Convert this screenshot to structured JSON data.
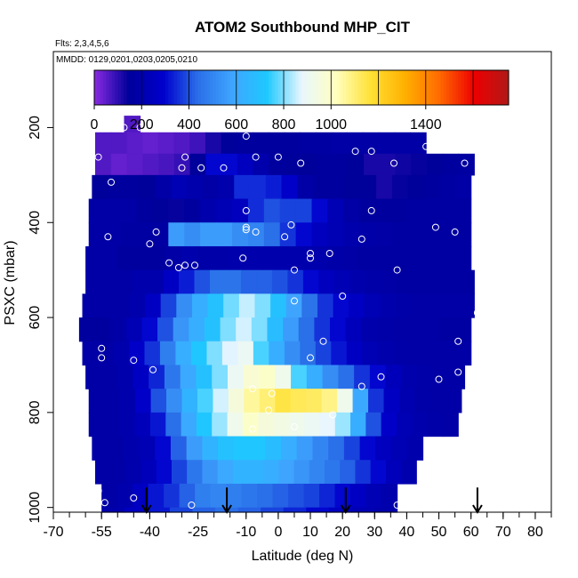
{
  "chart_data": {
    "type": "heatmap",
    "title": "ATOM2 Southbound MHP_CIT",
    "flights_note": "Flts: 2,3,4,5,6",
    "dates_note": "MMDD: 0129,0201,0203,0205,0210",
    "xlabel": "Latitude (deg N)",
    "ylabel": "PSXC (mbar)",
    "xlim": [
      -70,
      85
    ],
    "ylim": [
      1010,
      40
    ],
    "x_ticks": [
      {
        "value": -70,
        "label": "-70"
      },
      {
        "value": -55,
        "label": "-55"
      },
      {
        "value": -40,
        "label": "-40"
      },
      {
        "value": -25,
        "label": "-25"
      },
      {
        "value": -10,
        "label": "-10"
      },
      {
        "value": 0,
        "label": "0"
      },
      {
        "value": 10,
        "label": "10"
      },
      {
        "value": 20,
        "label": "20"
      },
      {
        "value": 30,
        "label": "30"
      },
      {
        "value": 40,
        "label": "40"
      },
      {
        "value": 50,
        "label": "50"
      },
      {
        "value": 60,
        "label": "60"
      },
      {
        "value": 70,
        "label": "70"
      },
      {
        "value": 80,
        "label": "80"
      }
    ],
    "x_minor_ticks": [
      -70,
      -65,
      -60,
      -55,
      -50,
      -45,
      -40,
      -35,
      -30,
      -25,
      -20,
      -15,
      -10,
      -5,
      0,
      5,
      10,
      15,
      20,
      25,
      30,
      35,
      40,
      45,
      50,
      55,
      60,
      65,
      70,
      75,
      80,
      85
    ],
    "y_ticks": [
      {
        "value": 200,
        "label": "200"
      },
      {
        "value": 400,
        "label": "400"
      },
      {
        "value": 600,
        "label": "600"
      },
      {
        "value": 800,
        "label": "800"
      },
      {
        "value": 1000,
        "label": "1000"
      }
    ],
    "colorbar": {
      "min": 0,
      "max": 1750,
      "boundaries": [
        0,
        200,
        400,
        600,
        800,
        1000,
        1200,
        1400,
        1600
      ],
      "labels": [
        {
          "value": 0,
          "label": "0"
        },
        {
          "value": 200,
          "label": "200"
        },
        {
          "value": 400,
          "label": "400"
        },
        {
          "value": 600,
          "label": "600"
        },
        {
          "value": 800,
          "label": "800"
        },
        {
          "value": 1000,
          "label": "1000"
        },
        {
          "value": 1400,
          "label": "1400"
        }
      ],
      "colors": [
        "#8a2be2",
        "#00009a",
        "#0000cd",
        "#2a6fe8",
        "#3fa5ff",
        "#1ec8ff",
        "#e8f6ff",
        "#ffffc0",
        "#ffe135",
        "#ffb000",
        "#ff6a00",
        "#ee0000",
        "#b01818"
      ]
    },
    "rows": [
      {
        "p_top": 175,
        "p_bot": 210,
        "x_start": -48,
        "x_end": -43,
        "values": [
          60,
          60
        ]
      },
      {
        "p_top": 210,
        "p_bot": 255,
        "x_start": -57,
        "x_end": 46,
        "values": [
          60,
          60,
          50,
          40,
          50,
          60,
          80,
          120,
          150,
          160,
          160,
          160,
          160,
          170,
          170,
          180,
          180,
          180,
          180,
          180,
          180
        ]
      },
      {
        "p_top": 255,
        "p_bot": 300,
        "x_start": -57,
        "x_end": 61,
        "values": [
          60,
          40,
          50,
          60,
          70,
          90,
          150,
          300,
          300,
          250,
          200,
          160,
          150,
          150,
          160,
          160,
          150,
          120,
          120,
          130,
          140,
          150,
          160,
          170
        ]
      },
      {
        "p_top": 300,
        "p_bot": 350,
        "x_start": -58,
        "x_end": 60,
        "values": [
          150,
          160,
          160,
          150,
          180,
          220,
          200,
          180,
          200,
          350,
          350,
          330,
          280,
          180,
          160,
          160,
          150,
          150,
          120,
          140,
          150,
          160,
          170,
          180
        ]
      },
      {
        "p_top": 350,
        "p_bot": 400,
        "x_start": -59,
        "x_end": 60,
        "values": [
          180,
          180,
          180,
          160,
          150,
          140,
          160,
          200,
          220,
          250,
          350,
          400,
          380,
          380,
          300,
          220,
          180,
          160,
          160,
          160,
          170,
          170,
          170,
          170
        ]
      },
      {
        "p_top": 400,
        "p_bot": 450,
        "x_start": -59,
        "x_end": 60,
        "values": [
          180,
          180,
          170,
          170,
          170,
          560,
          520,
          560,
          560,
          520,
          500,
          440,
          360,
          300,
          250,
          220,
          200,
          190,
          180,
          170,
          170,
          170,
          170,
          170
        ]
      },
      {
        "p_top": 450,
        "p_bot": 500,
        "x_start": -60,
        "x_end": 60,
        "values": [
          180,
          180,
          160,
          160,
          160,
          180,
          200,
          190,
          190,
          200,
          200,
          200,
          200,
          200,
          200,
          190,
          180,
          170,
          170,
          170,
          170,
          170,
          170,
          170
        ]
      },
      {
        "p_top": 500,
        "p_bot": 550,
        "x_start": -60,
        "x_end": 61,
        "values": [
          180,
          180,
          180,
          200,
          200,
          260,
          330,
          400,
          450,
          450,
          420,
          420,
          400,
          360,
          300,
          250,
          220,
          200,
          190,
          180,
          170,
          170,
          170,
          170,
          170
        ]
      },
      {
        "p_top": 550,
        "p_bot": 600,
        "x_start": -61,
        "x_end": 61,
        "values": [
          180,
          180,
          180,
          200,
          260,
          380,
          520,
          620,
          700,
          790,
          850,
          800,
          700,
          580,
          450,
          360,
          300,
          260,
          220,
          200,
          190,
          180,
          180,
          180,
          180
        ]
      },
      {
        "p_top": 600,
        "p_bot": 650,
        "x_start": -62,
        "x_end": 60,
        "values": [
          160,
          160,
          180,
          220,
          300,
          400,
          540,
          620,
          700,
          800,
          860,
          800,
          680,
          560,
          440,
          360,
          300,
          240,
          200,
          190,
          180,
          180,
          180,
          170,
          170
        ]
      },
      {
        "p_top": 650,
        "p_bot": 700,
        "x_start": -61,
        "x_end": 60,
        "values": [
          180,
          180,
          200,
          280,
          360,
          480,
          620,
          720,
          800,
          870,
          900,
          760,
          620,
          520,
          440,
          380,
          320,
          260,
          220,
          200,
          190,
          180,
          180,
          180,
          180
        ]
      },
      {
        "p_top": 700,
        "p_bot": 750,
        "x_start": -60,
        "x_end": 58,
        "values": [
          180,
          180,
          200,
          260,
          340,
          460,
          600,
          700,
          800,
          900,
          980,
          1000,
          920,
          760,
          620,
          520,
          440,
          360,
          300,
          240,
          200,
          190,
          180,
          180
        ]
      },
      {
        "p_top": 750,
        "p_bot": 800,
        "x_start": -59,
        "x_end": 57,
        "values": [
          180,
          180,
          200,
          280,
          400,
          520,
          640,
          760,
          860,
          960,
          1060,
          1100,
          1150,
          1130,
          1120,
          1080,
          920,
          600,
          360,
          260,
          210,
          190,
          180,
          180
        ]
      },
      {
        "p_top": 800,
        "p_bot": 850,
        "x_start": -59,
        "x_end": 56,
        "values": [
          180,
          180,
          200,
          240,
          320,
          440,
          600,
          720,
          820,
          920,
          1000,
          960,
          940,
          920,
          900,
          880,
          820,
          620,
          400,
          280,
          220,
          200,
          190,
          180
        ]
      },
      {
        "p_top": 850,
        "p_bot": 900,
        "x_start": -58,
        "x_end": 45,
        "values": [
          180,
          180,
          200,
          220,
          300,
          420,
          560,
          640,
          700,
          720,
          720,
          680,
          620,
          560,
          500,
          440,
          380,
          300,
          250,
          220,
          200
        ]
      },
      {
        "p_top": 900,
        "p_bot": 950,
        "x_start": -57,
        "x_end": 43,
        "values": [
          180,
          180,
          200,
          240,
          300,
          380,
          460,
          540,
          600,
          640,
          640,
          620,
          580,
          540,
          500,
          460,
          420,
          360,
          300,
          240,
          200
        ]
      },
      {
        "p_top": 950,
        "p_bot": 1000,
        "x_start": -55,
        "x_end": 37,
        "values": [
          180,
          200,
          260,
          320,
          360,
          420,
          480,
          500,
          480,
          460,
          440,
          420,
          400,
          380,
          340,
          300,
          260,
          220,
          200
        ]
      },
      {
        "p_top": 1000,
        "p_bot": 1010,
        "x_start": -55,
        "x_end": 37,
        "values": [
          200,
          260,
          320,
          380,
          420,
          440,
          420,
          380,
          340,
          300,
          260,
          220,
          200
        ]
      }
    ],
    "sample_points": [
      {
        "x": -48,
        "p": 200
      },
      {
        "x": -43,
        "p": 200
      },
      {
        "x": -56,
        "p": 262
      },
      {
        "x": -29,
        "p": 262
      },
      {
        "x": -10,
        "p": 218
      },
      {
        "x": -30,
        "p": 285
      },
      {
        "x": -24,
        "p": 285
      },
      {
        "x": -17,
        "p": 285
      },
      {
        "x": -7,
        "p": 262
      },
      {
        "x": 0,
        "p": 262
      },
      {
        "x": 7,
        "p": 275
      },
      {
        "x": 24,
        "p": 250
      },
      {
        "x": 29,
        "p": 250
      },
      {
        "x": 36,
        "p": 275
      },
      {
        "x": 46,
        "p": 240
      },
      {
        "x": 58,
        "p": 275
      },
      {
        "x": -52,
        "p": 315
      },
      {
        "x": -10,
        "p": 375
      },
      {
        "x": -10,
        "p": 410
      },
      {
        "x": -10,
        "p": 415
      },
      {
        "x": -7,
        "p": 420
      },
      {
        "x": 4,
        "p": 405
      },
      {
        "x": 2,
        "p": 430
      },
      {
        "x": 10,
        "p": 465
      },
      {
        "x": 16,
        "p": 465
      },
      {
        "x": 29,
        "p": 375
      },
      {
        "x": 26,
        "p": 435
      },
      {
        "x": 49,
        "p": 410
      },
      {
        "x": 55,
        "p": 420
      },
      {
        "x": -38,
        "p": 420
      },
      {
        "x": -53,
        "p": 430
      },
      {
        "x": -40,
        "p": 445
      },
      {
        "x": -34,
        "p": 485
      },
      {
        "x": -29,
        "p": 490
      },
      {
        "x": -26,
        "p": 490
      },
      {
        "x": -31,
        "p": 495
      },
      {
        "x": -11,
        "p": 475
      },
      {
        "x": 5,
        "p": 500
      },
      {
        "x": 10,
        "p": 475
      },
      {
        "x": 37,
        "p": 500
      },
      {
        "x": 5,
        "p": 565
      },
      {
        "x": 20,
        "p": 555
      },
      {
        "x": 62,
        "p": 590
      },
      {
        "x": -68,
        "p": 640
      },
      {
        "x": -55,
        "p": 665
      },
      {
        "x": -55,
        "p": 685
      },
      {
        "x": -45,
        "p": 690
      },
      {
        "x": -39,
        "p": 710
      },
      {
        "x": 10,
        "p": 685
      },
      {
        "x": 14,
        "p": 650
      },
      {
        "x": 26,
        "p": 745
      },
      {
        "x": 32,
        "p": 725
      },
      {
        "x": 50,
        "p": 730
      },
      {
        "x": 56,
        "p": 650
      },
      {
        "x": 56,
        "p": 715
      },
      {
        "x": -8,
        "p": 750
      },
      {
        "x": -2,
        "p": 760
      },
      {
        "x": -3,
        "p": 795
      },
      {
        "x": -8,
        "p": 835
      },
      {
        "x": 5,
        "p": 830
      },
      {
        "x": 17,
        "p": 805
      },
      {
        "x": -56,
        "p": 965
      },
      {
        "x": -54,
        "p": 990
      },
      {
        "x": -45,
        "p": 980
      },
      {
        "x": -27,
        "p": 995
      },
      {
        "x": 37,
        "p": 995
      }
    ],
    "arrows": [
      {
        "x": -41,
        "p_from": 958,
        "p_to": 1010
      },
      {
        "x": -16,
        "p_from": 958,
        "p_to": 1010
      },
      {
        "x": 21,
        "p_from": 958,
        "p_to": 1010
      },
      {
        "x": 62,
        "p_from": 958,
        "p_to": 1010
      }
    ]
  }
}
